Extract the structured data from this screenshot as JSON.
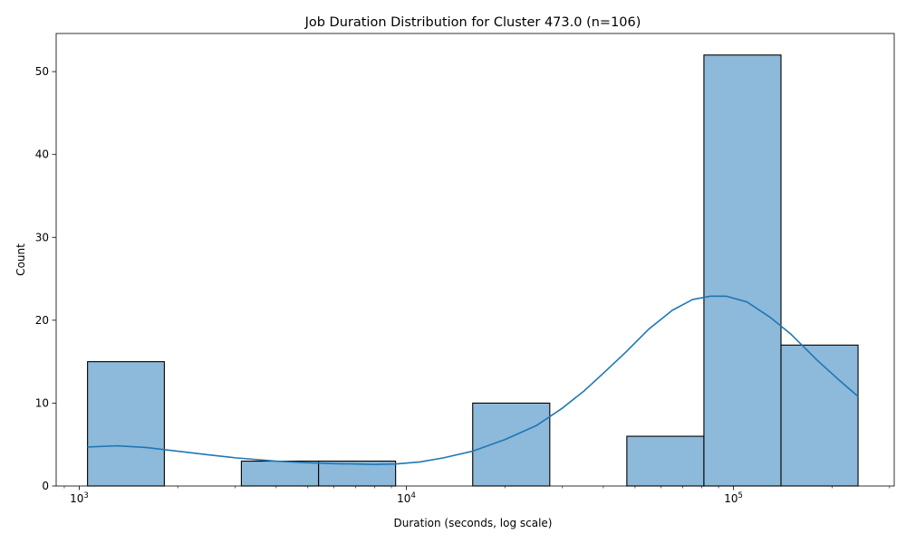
{
  "chart_data": {
    "type": "bar",
    "title": "Job Duration Distribution for Cluster 473.0 (n=106)",
    "xlabel": "Duration (seconds, log scale)",
    "ylabel": "Count",
    "x_scale": "log",
    "xlim": [
      850,
      310000
    ],
    "ylim": [
      0,
      54.6
    ],
    "x_ticks": [
      {
        "value": 1000,
        "mantissa": "10",
        "exponent": "3"
      },
      {
        "value": 10000,
        "mantissa": "10",
        "exponent": "4"
      },
      {
        "value": 100000,
        "mantissa": "10",
        "exponent": "5"
      }
    ],
    "y_ticks": [
      {
        "value": 0,
        "label": "0"
      },
      {
        "value": 10,
        "label": "10"
      },
      {
        "value": 20,
        "label": "20"
      },
      {
        "value": 30,
        "label": "30"
      },
      {
        "value": 40,
        "label": "40"
      },
      {
        "value": 50,
        "label": "50"
      }
    ],
    "bins": [
      {
        "from": 1060,
        "to": 1820,
        "count": 15
      },
      {
        "from": 1820,
        "to": 3130,
        "count": 0
      },
      {
        "from": 3130,
        "to": 5390,
        "count": 3
      },
      {
        "from": 5390,
        "to": 9270,
        "count": 3
      },
      {
        "from": 9270,
        "to": 15950,
        "count": 0
      },
      {
        "from": 15950,
        "to": 27440,
        "count": 10
      },
      {
        "from": 27440,
        "to": 47200,
        "count": 0
      },
      {
        "from": 47200,
        "to": 81200,
        "count": 6
      },
      {
        "from": 81200,
        "to": 139700,
        "count": 52
      },
      {
        "from": 139700,
        "to": 240300,
        "count": 17
      }
    ],
    "kde": {
      "x": [
        1060,
        1300,
        1600,
        2000,
        2500,
        3000,
        4000,
        5000,
        6000,
        7000,
        8000,
        9270,
        11000,
        13000,
        15950,
        20000,
        25000,
        30000,
        35000,
        40000,
        47000,
        55000,
        65000,
        75000,
        85000,
        95000,
        110000,
        130000,
        150000,
        180000,
        210000,
        240300
      ],
      "y": [
        4.7,
        4.85,
        4.65,
        4.2,
        3.75,
        3.4,
        3.0,
        2.8,
        2.7,
        2.65,
        2.6,
        2.65,
        2.9,
        3.4,
        4.2,
        5.6,
        7.3,
        9.4,
        11.5,
        13.6,
        16.2,
        18.9,
        21.2,
        22.5,
        22.9,
        22.9,
        22.2,
        20.3,
        18.3,
        15.2,
        12.8,
        10.8
      ]
    },
    "colors": {
      "bar_fill": "#8db9da",
      "bar_edge": "#000000",
      "kde_line": "#1f77b4"
    },
    "grid": false,
    "legend": "none"
  }
}
